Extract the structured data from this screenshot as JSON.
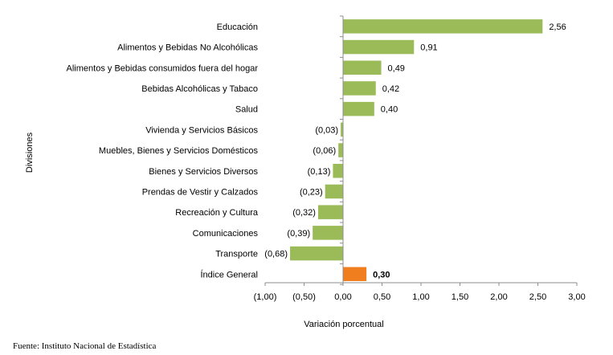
{
  "chart_data": {
    "type": "bar",
    "orientation": "horizontal",
    "ylabel": "Divisiones",
    "xlabel": "Variación porcentual",
    "xlim": [
      -1.0,
      3.0
    ],
    "xticks": [
      -1.0,
      -0.5,
      0.0,
      0.5,
      1.0,
      1.5,
      2.0,
      2.5,
      3.0
    ],
    "xtick_labels": [
      "(1,00)",
      "(0,50)",
      "0,00",
      "0,50",
      "1,00",
      "1,50",
      "2,00",
      "2,50",
      "3,00"
    ],
    "grid": false,
    "legend": "none",
    "bars": [
      {
        "category": "Educación",
        "value": 2.56,
        "label": "2,56",
        "highlight": false
      },
      {
        "category": "Alimentos y Bebidas No Alcohólicas",
        "value": 0.91,
        "label": "0,91",
        "highlight": false
      },
      {
        "category": "Alimentos y Bebidas consumidos fuera del hogar",
        "value": 0.49,
        "label": "0,49",
        "highlight": false
      },
      {
        "category": "Bebidas Alcohólicas y Tabaco",
        "value": 0.42,
        "label": "0,42",
        "highlight": false
      },
      {
        "category": "Salud",
        "value": 0.4,
        "label": "0,40",
        "highlight": false
      },
      {
        "category": "Vivienda y Servicios Básicos",
        "value": -0.03,
        "label": "(0,03)",
        "highlight": false
      },
      {
        "category": "Muebles, Bienes y Servicios Domésticos",
        "value": -0.06,
        "label": "(0,06)",
        "highlight": false
      },
      {
        "category": "Bienes y Servicios Diversos",
        "value": -0.13,
        "label": "(0,13)",
        "highlight": false
      },
      {
        "category": "Prendas de Vestir y Calzados",
        "value": -0.23,
        "label": "(0,23)",
        "highlight": false
      },
      {
        "category": "Recreación y Cultura",
        "value": -0.32,
        "label": "(0,32)",
        "highlight": false
      },
      {
        "category": "Comunicaciones",
        "value": -0.39,
        "label": "(0,39)",
        "highlight": false
      },
      {
        "category": "Transporte",
        "value": -0.68,
        "label": "(0,68)",
        "highlight": false
      },
      {
        "category": "Índice General",
        "value": 0.3,
        "label": "0,30",
        "highlight": true
      }
    ],
    "colors": {
      "bar": "#9BBB59",
      "highlight": "#F07E1F",
      "axis": "#8C8C8C"
    }
  },
  "source": "Fuente: Instituto Nacional de Estadística"
}
